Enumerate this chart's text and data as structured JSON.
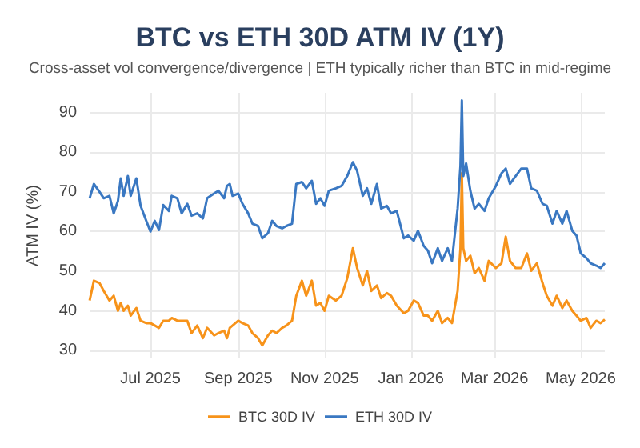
{
  "chart_data": {
    "type": "line",
    "title": "BTC vs ETH 30D ATM IV (1Y)",
    "subtitle": "Cross-asset vol convergence/divergence | ETH typically richer than BTC in mid-regime",
    "ylabel": "ATM IV (%)",
    "x": [
      "2025-05-19",
      "2025-05-22",
      "2025-05-26",
      "2025-05-29",
      "2025-06-02",
      "2025-06-05",
      "2025-06-08",
      "2025-06-10",
      "2025-06-12",
      "2025-06-15",
      "2025-06-17",
      "2025-06-21",
      "2025-06-24",
      "2025-06-28",
      "2025-07-01",
      "2025-07-04",
      "2025-07-07",
      "2025-07-10",
      "2025-07-14",
      "2025-07-16",
      "2025-07-20",
      "2025-07-23",
      "2025-07-27",
      "2025-07-30",
      "2025-08-03",
      "2025-08-07",
      "2025-08-10",
      "2025-08-15",
      "2025-08-18",
      "2025-08-22",
      "2025-08-24",
      "2025-08-26",
      "2025-08-28",
      "2025-09-01",
      "2025-09-04",
      "2025-09-08",
      "2025-09-11",
      "2025-09-15",
      "2025-09-18",
      "2025-09-22",
      "2025-09-25",
      "2025-09-28",
      "2025-10-02",
      "2025-10-05",
      "2025-10-09",
      "2025-10-12",
      "2025-10-16",
      "2025-10-19",
      "2025-10-23",
      "2025-10-26",
      "2025-10-29",
      "2025-11-01",
      "2025-11-04",
      "2025-11-09",
      "2025-11-13",
      "2025-11-17",
      "2025-11-21",
      "2025-11-24",
      "2025-11-28",
      "2025-12-01",
      "2025-12-04",
      "2025-12-08",
      "2025-12-11",
      "2025-12-15",
      "2025-12-18",
      "2025-12-22",
      "2025-12-27",
      "2025-12-30",
      "2026-01-03",
      "2026-01-06",
      "2026-01-10",
      "2026-01-13",
      "2026-01-16",
      "2026-01-20",
      "2026-01-23",
      "2026-01-27",
      "2026-01-30",
      "2026-02-03",
      "2026-02-05",
      "2026-02-06",
      "2026-02-07",
      "2026-02-09",
      "2026-02-12",
      "2026-02-15",
      "2026-02-18",
      "2026-02-22",
      "2026-02-25",
      "2026-03-02",
      "2026-03-06",
      "2026-03-09",
      "2026-03-12",
      "2026-03-16",
      "2026-03-20",
      "2026-03-24",
      "2026-03-27",
      "2026-03-31",
      "2026-04-04",
      "2026-04-07",
      "2026-04-11",
      "2026-04-14",
      "2026-04-18",
      "2026-04-21",
      "2026-04-25",
      "2026-04-28",
      "2026-05-01",
      "2026-05-05",
      "2026-05-08",
      "2026-05-12",
      "2026-05-15",
      "2026-05-18"
    ],
    "series": [
      {
        "name": "BTC 30D IV",
        "color": "#f7931a",
        "values": [
          42.6,
          47.6,
          47,
          45,
          42.6,
          43.8,
          40,
          42,
          40,
          41.3,
          38.8,
          40.7,
          37.5,
          36.9,
          36.9,
          36.3,
          35.7,
          37.5,
          37.5,
          38.2,
          37.5,
          37.5,
          37.5,
          34.4,
          36.3,
          33.1,
          35.7,
          33.8,
          34.4,
          35,
          33.1,
          35.7,
          36.3,
          37.5,
          36.9,
          36.3,
          34.4,
          33.1,
          31.3,
          33.8,
          35,
          34.4,
          35.7,
          36.3,
          37.5,
          43.8,
          47.6,
          43.8,
          47.6,
          41.3,
          42,
          40,
          43.8,
          42.6,
          43.8,
          48.2,
          55.8,
          50.8,
          46.4,
          50.1,
          45,
          46.4,
          43.2,
          44.5,
          43.8,
          41.3,
          39.4,
          40,
          42.6,
          42,
          38.8,
          38.8,
          37.5,
          40,
          36.9,
          38.2,
          36.9,
          45,
          55.8,
          74.7,
          55.8,
          52.6,
          53.9,
          49.5,
          50.8,
          47.6,
          52.6,
          50.8,
          52,
          58.7,
          52.6,
          50.8,
          50.8,
          54.5,
          50.1,
          52,
          47,
          43.8,
          41.3,
          43.8,
          40.7,
          42.6,
          40,
          38.8,
          37.5,
          38.2,
          35.7,
          37.5,
          36.9,
          37.8
        ]
      },
      {
        "name": "ETH 30D IV",
        "color": "#3a78c2",
        "values": [
          68.4,
          72,
          70,
          68.4,
          69,
          64.6,
          67.7,
          73.4,
          69,
          74,
          69,
          73.4,
          66.5,
          62.7,
          60,
          62.7,
          60.4,
          66.7,
          65.2,
          69,
          68.4,
          64.6,
          67,
          64,
          64.6,
          63.3,
          68.4,
          69.6,
          70.3,
          68.4,
          71.5,
          72,
          69,
          69.6,
          67,
          64.6,
          62,
          61.4,
          58.3,
          59.6,
          62.7,
          61.4,
          60.8,
          61.4,
          62,
          72,
          72.5,
          70.9,
          72.8,
          67,
          68.4,
          66.5,
          70.3,
          70.9,
          71.5,
          74,
          77.5,
          75.3,
          69,
          70.9,
          67,
          72,
          65.8,
          66.5,
          64.6,
          65.2,
          58.3,
          59,
          57.7,
          60.2,
          56.4,
          55.2,
          52,
          55.8,
          52.6,
          55.8,
          52.6,
          65.8,
          76.5,
          93.1,
          74,
          77.2,
          70.3,
          65.8,
          67,
          65.2,
          68.4,
          71.5,
          74.7,
          75.9,
          72,
          74,
          75.9,
          75.9,
          70.9,
          70.3,
          67,
          66.5,
          62,
          65.2,
          62,
          65.2,
          60.2,
          59,
          54.5,
          53.3,
          52,
          51.4,
          50.8,
          52
        ]
      }
    ],
    "xlim": [
      "2025-05-19",
      "2026-05-18"
    ],
    "xticks": [
      {
        "value": "2025-07-01",
        "label": "Jul 2025"
      },
      {
        "value": "2025-09-01",
        "label": "Sep 2025"
      },
      {
        "value": "2025-11-01",
        "label": "Nov 2025"
      },
      {
        "value": "2026-01-01",
        "label": "Jan 2026"
      },
      {
        "value": "2026-03-01",
        "label": "Mar 2026"
      },
      {
        "value": "2026-05-01",
        "label": "May 2026"
      }
    ],
    "ylim": [
      28,
      95
    ],
    "yticks": [
      30,
      40,
      50,
      60,
      70,
      80,
      90
    ],
    "grid": true,
    "legend": "bottom",
    "marker": "none",
    "line_style": "solid"
  }
}
